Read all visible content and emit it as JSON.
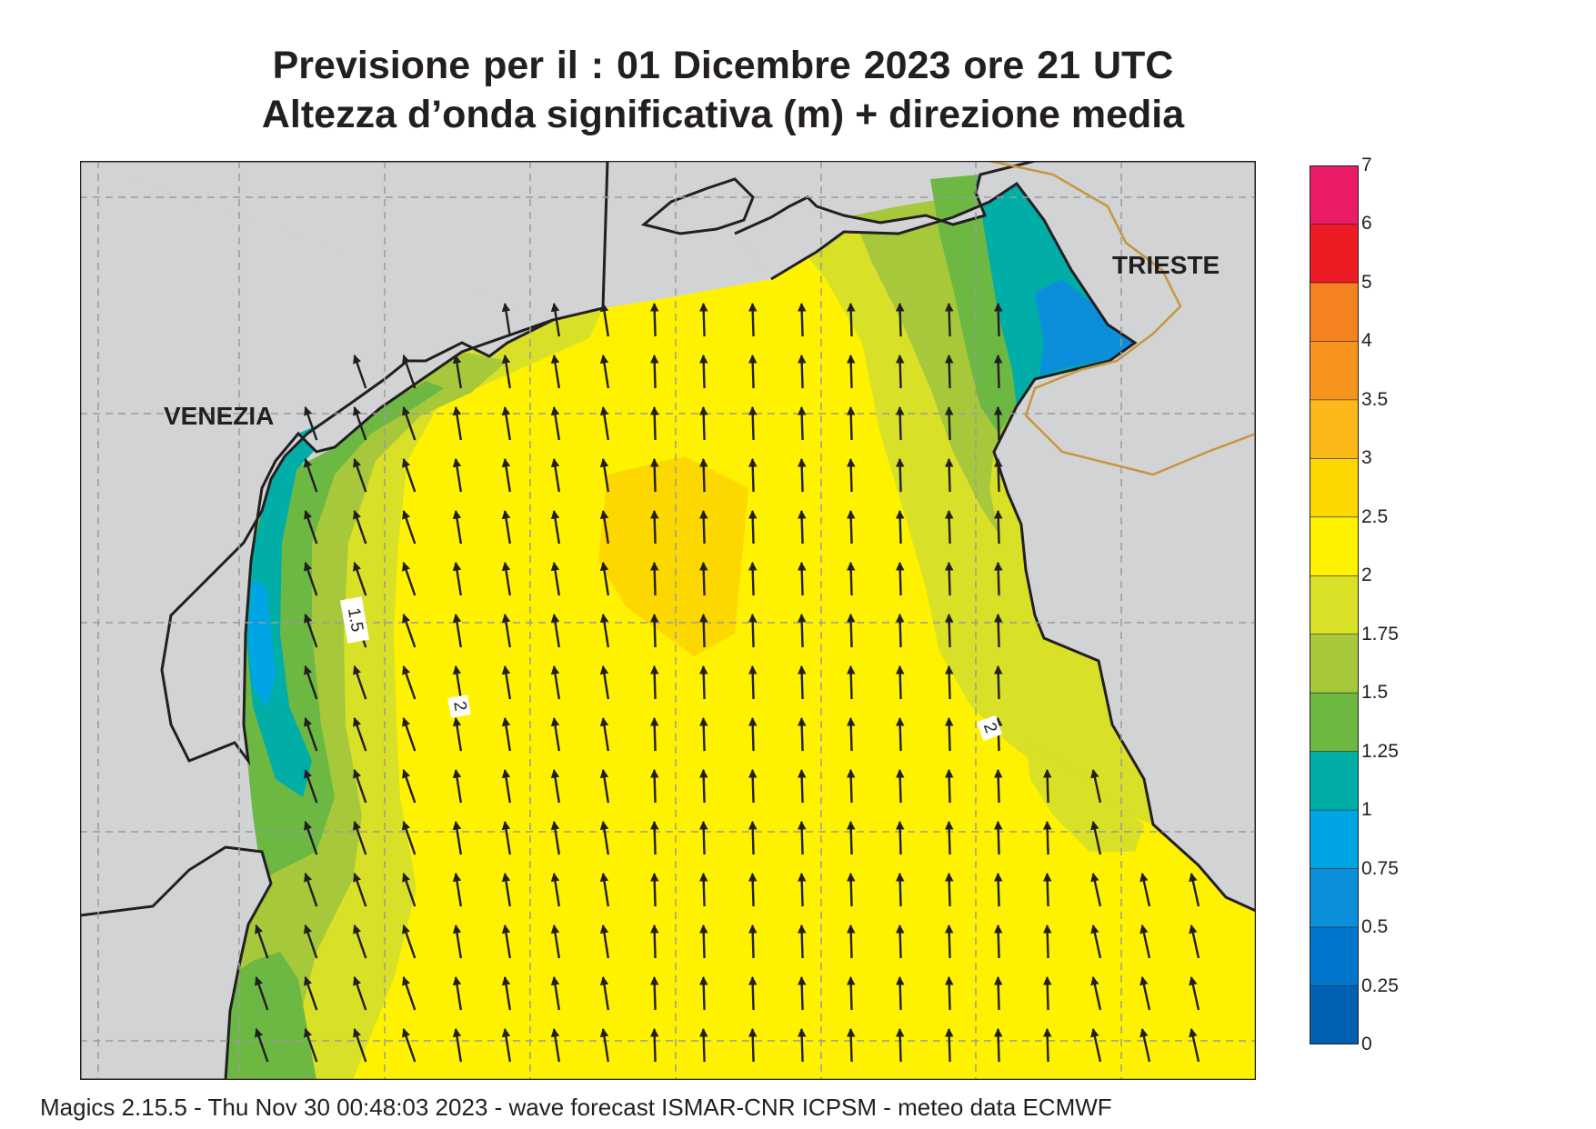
{
  "title": {
    "line1": "Previsione per il  :  01 Dicembre  2023   ore 21 UTC",
    "line2": "Altezza d’onda significativa (m) + direzione media"
  },
  "map": {
    "places": [
      "VENEZIA",
      "TRIESTE"
    ],
    "contour_labels": [
      "1.5",
      "2",
      "2"
    ],
    "colors": {
      "land": "#d1d3d4",
      "coast": "#231f20",
      "border": "#c8963c",
      "grid": "#9b9b9b",
      "arrow": "#231f20"
    }
  },
  "legend": {
    "labels": [
      "7",
      "6",
      "5",
      "4",
      "3.5",
      "3",
      "2.5",
      "2",
      "1.75",
      "1.5",
      "1.25",
      "1",
      "0.75",
      "0.5",
      "0.25",
      "0"
    ],
    "colors": [
      "#0061b4",
      "#0176cc",
      "#0c8fdb",
      "#00a5e6",
      "#00ada7",
      "#6cb843",
      "#a6c83a",
      "#d8e027",
      "#fff200",
      "#fcd800",
      "#fbb819",
      "#f7941d",
      "#f58220",
      "#ed1c24",
      "#ec1b68"
    ]
  },
  "footer": "Magics 2.15.5 - Thu Nov 30 00:48:03 2023 - wave forecast  ISMAR-CNR  ICPSM - meteo data   ECMWF"
}
